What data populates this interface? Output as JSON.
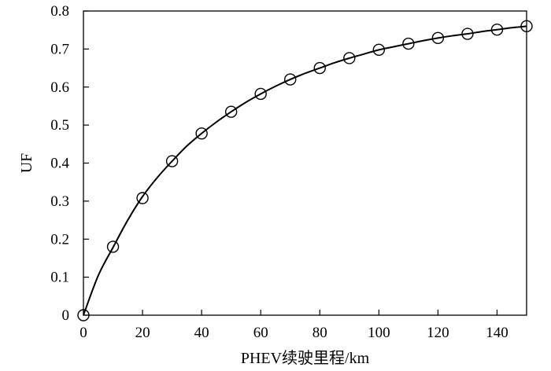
{
  "chart_data": {
    "type": "line",
    "title": "",
    "xlabel": "PHEV续驶里程/km",
    "ylabel": "UF",
    "xlim": [
      0,
      150
    ],
    "ylim": [
      0,
      0.8
    ],
    "x_ticks": [
      0,
      20,
      40,
      60,
      80,
      100,
      120,
      140
    ],
    "y_ticks": [
      0,
      0.1,
      0.2,
      0.3,
      0.4,
      0.5,
      0.6,
      0.7,
      0.8
    ],
    "y_tick_labels": [
      "0",
      "0.1",
      "0.2",
      "0.3",
      "0.4",
      "0.5",
      "0.6",
      "0.7",
      "0.8"
    ],
    "grid": false,
    "legend": "none",
    "series": [
      {
        "style": "markers",
        "marker": "open-circle",
        "x": [
          0,
          10,
          20,
          30,
          40,
          50,
          60,
          70,
          80,
          90,
          100,
          110,
          120,
          130,
          140,
          150
        ],
        "y": [
          0.0,
          0.18,
          0.308,
          0.405,
          0.478,
          0.535,
          0.582,
          0.62,
          0.65,
          0.676,
          0.698,
          0.714,
          0.729,
          0.74,
          0.751,
          0.76
        ]
      },
      {
        "style": "smooth-line",
        "x": [
          0,
          5,
          10,
          15,
          20,
          25,
          30,
          35,
          40,
          45,
          50,
          55,
          60,
          65,
          70,
          75,
          80,
          85,
          90,
          95,
          100,
          105,
          110,
          115,
          120,
          125,
          130,
          135,
          140,
          145,
          150
        ],
        "y": [
          0.0,
          0.104,
          0.178,
          0.25,
          0.312,
          0.362,
          0.405,
          0.445,
          0.478,
          0.508,
          0.535,
          0.56,
          0.582,
          0.602,
          0.62,
          0.636,
          0.65,
          0.664,
          0.676,
          0.687,
          0.698,
          0.706,
          0.714,
          0.722,
          0.729,
          0.735,
          0.74,
          0.746,
          0.751,
          0.756,
          0.76
        ]
      }
    ]
  }
}
